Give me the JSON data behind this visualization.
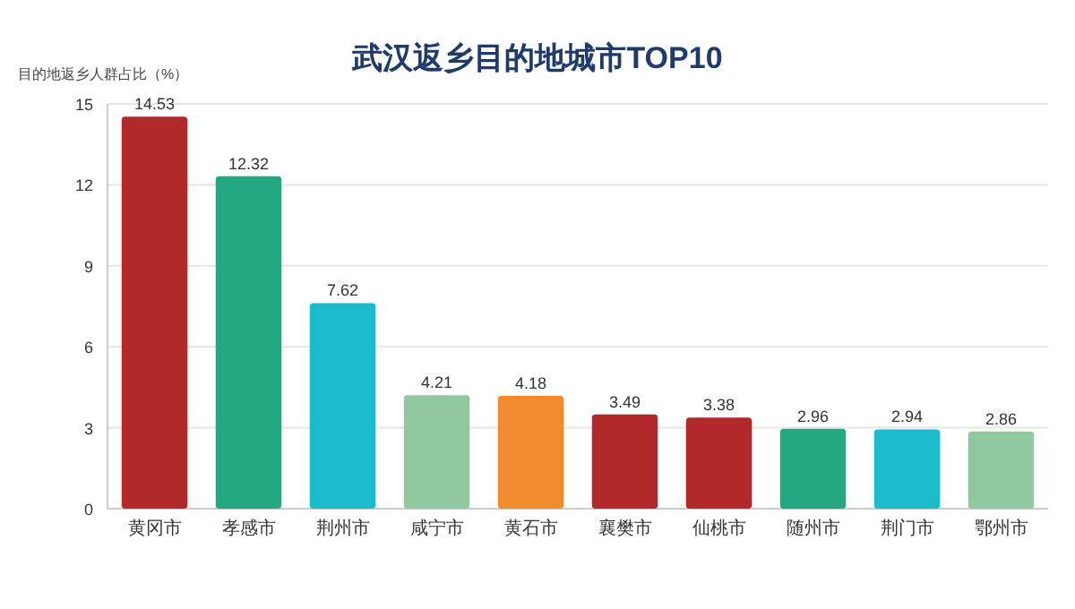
{
  "chart_data": {
    "type": "bar",
    "title": "武汉返乡目的地城市TOP10",
    "ylabel": "目的地返乡人群占比（%）",
    "categories": [
      "黄冈市",
      "孝感市",
      "荆州市",
      "咸宁市",
      "黄石市",
      "襄樊市",
      "仙桃市",
      "随州市",
      "荆门市",
      "鄂州市"
    ],
    "values": [
      14.53,
      12.32,
      7.62,
      4.21,
      4.18,
      3.49,
      3.38,
      2.96,
      2.94,
      2.86
    ],
    "colors": [
      "#b3282a",
      "#24a882",
      "#1abccb",
      "#90c8a0",
      "#f08c2e",
      "#b3282a",
      "#b3282a",
      "#24a882",
      "#1abccb",
      "#90c8a0"
    ],
    "ylim": [
      0,
      15
    ],
    "yticks": [
      0,
      3,
      6,
      9,
      12,
      15
    ],
    "grid": "y",
    "data_labels": true
  }
}
